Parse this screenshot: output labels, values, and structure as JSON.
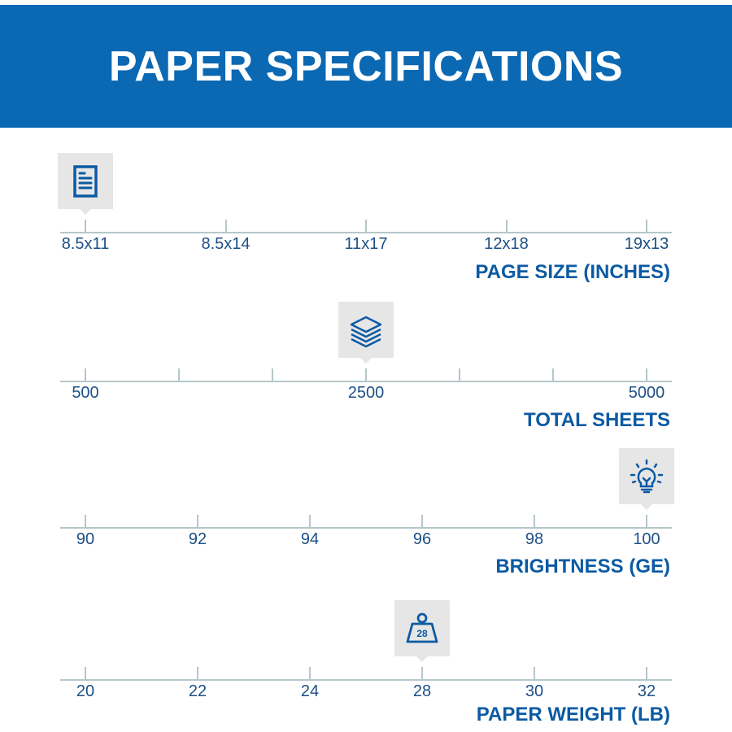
{
  "header": {
    "title": "PAPER SPECIFICATIONS"
  },
  "accent_color": "#0b68b3",
  "scales": [
    {
      "id": "page-size",
      "title": "PAGE SIZE (INCHES)",
      "icon": "document-icon",
      "ticks": [
        {
          "label": "8.5x11"
        },
        {
          "label": "8.5x14"
        },
        {
          "label": "11x17"
        },
        {
          "label": "12x18"
        },
        {
          "label": "19x13"
        }
      ],
      "selected_index": 0
    },
    {
      "id": "total-sheets",
      "title": "TOTAL SHEETS",
      "icon": "paper-stack-icon",
      "ticks": [
        {
          "label": "500"
        },
        {
          "label": ""
        },
        {
          "label": ""
        },
        {
          "label": "2500"
        },
        {
          "label": ""
        },
        {
          "label": ""
        },
        {
          "label": "5000"
        }
      ],
      "selected_index": 3
    },
    {
      "id": "brightness",
      "title": "BRIGHTNESS (GE)",
      "icon": "lightbulb-icon",
      "ticks": [
        {
          "label": "90"
        },
        {
          "label": "92"
        },
        {
          "label": "94"
        },
        {
          "label": "96"
        },
        {
          "label": "98"
        },
        {
          "label": "100"
        }
      ],
      "selected_index": 5
    },
    {
      "id": "paper-weight",
      "title": "PAPER WEIGHT (LB)",
      "icon": "weight-icon",
      "icon_text": "28",
      "ticks": [
        {
          "label": "20"
        },
        {
          "label": "22"
        },
        {
          "label": "24"
        },
        {
          "label": "28"
        },
        {
          "label": "30"
        },
        {
          "label": "32"
        }
      ],
      "selected_index": 3
    }
  ]
}
